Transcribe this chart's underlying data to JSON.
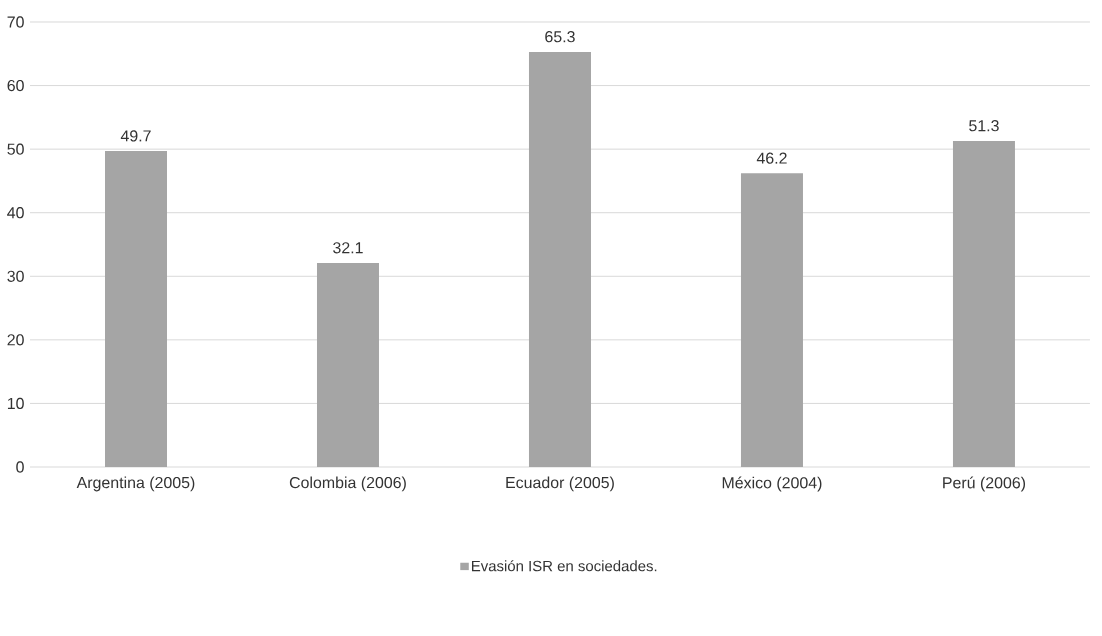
{
  "chart_data": {
    "type": "bar",
    "categories": [
      "Argentina (2005)",
      "Colombia (2006)",
      "Ecuador (2005)",
      "México (2004)",
      "Perú (2006)"
    ],
    "series": [
      {
        "name": "Evasión ISR en sociedades.",
        "color": "#a5a5a5",
        "values": [
          49.7,
          32.1,
          65.3,
          46.2,
          51.3
        ]
      }
    ],
    "ylim": [
      0,
      70
    ],
    "yticks": [
      0,
      10,
      20,
      30,
      40,
      50,
      60,
      70
    ],
    "grid": "y",
    "legend": "bottom",
    "data_labels": true
  }
}
